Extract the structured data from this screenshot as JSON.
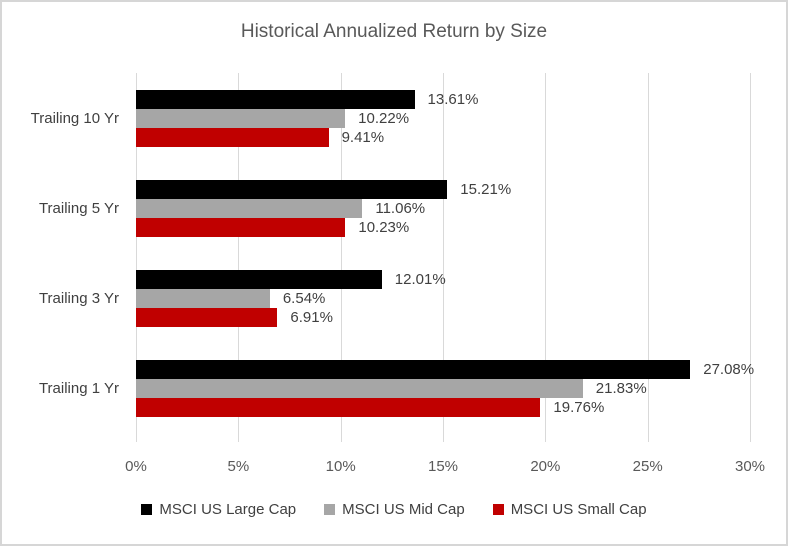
{
  "title": "Historical Annualized Return by Size",
  "chart_data": {
    "type": "bar",
    "orientation": "horizontal",
    "title": "Historical Annualized Return by Size",
    "categories": [
      "Trailing 10 Yr",
      "Trailing 5 Yr",
      "Trailing 3 Yr",
      "Trailing 1 Yr"
    ],
    "series": [
      {
        "name": "MSCI US Large Cap",
        "color": "#000000",
        "values": [
          13.61,
          15.21,
          12.01,
          27.08
        ],
        "labels": [
          "13.61%",
          "15.21%",
          "12.01%",
          "27.08%"
        ]
      },
      {
        "name": "MSCI US Mid Cap",
        "color": "#A6A6A6",
        "values": [
          10.22,
          11.06,
          6.54,
          21.83
        ],
        "labels": [
          "10.22%",
          "11.06%",
          "6.54%",
          "21.83%"
        ]
      },
      {
        "name": "MSCI US Small Cap",
        "color": "#C00000",
        "values": [
          9.41,
          10.23,
          6.91,
          19.76
        ],
        "labels": [
          "9.41%",
          "10.23%",
          "6.91%",
          "19.76%"
        ]
      }
    ],
    "x_axis": {
      "ticks": [
        "0%",
        "5%",
        "10%",
        "15%",
        "20%",
        "25%",
        "30%"
      ],
      "min": 0,
      "max": 30
    },
    "grid": true,
    "legend_position": "bottom"
  },
  "colors": {
    "background": "#FFFFFF",
    "border": "#D6D6D6",
    "grid": "#D9D9D9",
    "title_text": "#595959",
    "axis_text": "#595959",
    "label_text": "#404040",
    "series_large": "#000000",
    "series_mid": "#A6A6A6",
    "series_small": "#C00000"
  }
}
